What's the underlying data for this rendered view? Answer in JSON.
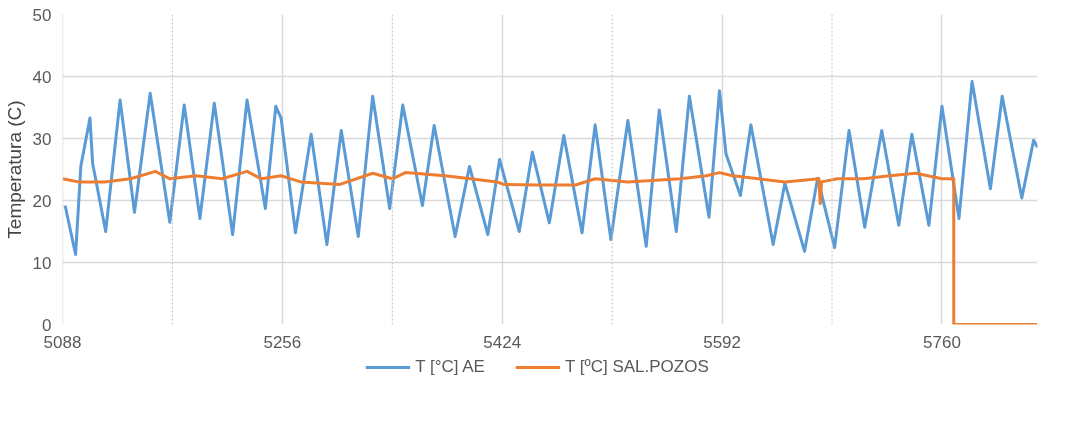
{
  "chart_data": {
    "type": "line",
    "ylabel": "Temperatura (C)",
    "xlim": [
      5088,
      5833
    ],
    "ylim": [
      0,
      50
    ],
    "xticks": [
      5088,
      {
        "value": 5172,
        "label": null
      },
      5256,
      {
        "value": 5340,
        "label": null
      },
      5424,
      {
        "value": 5508,
        "label": null
      },
      5592,
      {
        "value": 5676,
        "label": null
      },
      5760
    ],
    "yticks": [
      0,
      10,
      20,
      30,
      40,
      50
    ],
    "grid": true,
    "legend": "bottom",
    "marker": "none",
    "line_style": "solid",
    "series": [
      {
        "name": "T [°C] AE",
        "color": "#5b9bd5",
        "x": [
          5090,
          5098,
          5102,
          5109,
          5111,
          5121,
          5132,
          5143,
          5155,
          5170,
          5181,
          5193,
          5204,
          5218,
          5229,
          5243,
          5251,
          5255,
          5266,
          5278,
          5290,
          5301,
          5314,
          5325,
          5338,
          5348,
          5363,
          5372,
          5388,
          5399,
          5413,
          5422,
          5437,
          5447,
          5460,
          5471,
          5485,
          5495,
          5507,
          5520,
          5534,
          5544,
          5557,
          5567,
          5582,
          5590,
          5595,
          5606,
          5614,
          5631,
          5640,
          5655,
          5665,
          5678,
          5689,
          5701,
          5714,
          5727,
          5737,
          5750,
          5760,
          5773,
          5783,
          5797,
          5806,
          5821,
          5830,
          5833
        ],
        "values": [
          19.2,
          11.3,
          25.5,
          33.3,
          26,
          15,
          36.2,
          18.1,
          37.3,
          16.5,
          35.4,
          17.1,
          35.7,
          14.5,
          36.2,
          18.7,
          35.2,
          33.3,
          14.8,
          30.7,
          12.9,
          31.3,
          14.2,
          36.8,
          18.7,
          35.4,
          19.2,
          32.1,
          14.2,
          25.5,
          14.5,
          26.6,
          15,
          27.8,
          16.4,
          30.5,
          14.8,
          32.2,
          13.7,
          32.9,
          12.6,
          34.6,
          15,
          36.8,
          17.3,
          37.7,
          27.5,
          20.8,
          32.2,
          12.9,
          22.8,
          11.8,
          23.6,
          12.4,
          31.3,
          15.7,
          31.3,
          16,
          30.7,
          16,
          35.2,
          17.1,
          39.2,
          21.9,
          36.8,
          20.4,
          29.7,
          28.6
        ]
      },
      {
        "name": "T [ºC] SAL.POZOS",
        "color": "#ed7d31",
        "x": [
          5088,
          5100,
          5120,
          5140,
          5159,
          5170,
          5190,
          5210,
          5229,
          5240,
          5255,
          5270,
          5300,
          5325,
          5340,
          5350,
          5380,
          5400,
          5420,
          5425,
          5450,
          5480,
          5495,
          5520,
          5560,
          5580,
          5590,
          5600,
          5620,
          5640,
          5666,
          5667,
          5668,
          5680,
          5700,
          5720,
          5740,
          5760,
          5769,
          5769,
          5833
        ],
        "values": [
          23.5,
          23,
          23,
          23.5,
          24.7,
          23.5,
          24,
          23.5,
          24.7,
          23.5,
          24,
          23,
          22.6,
          24.4,
          23.5,
          24.5,
          24,
          23.5,
          23,
          22.6,
          22.5,
          22.5,
          23.5,
          23,
          23.5,
          24,
          24.5,
          24,
          23.5,
          23,
          23.5,
          19.5,
          23,
          23.5,
          23.5,
          24,
          24.4,
          23.5,
          23.5,
          0,
          0
        ]
      }
    ]
  }
}
